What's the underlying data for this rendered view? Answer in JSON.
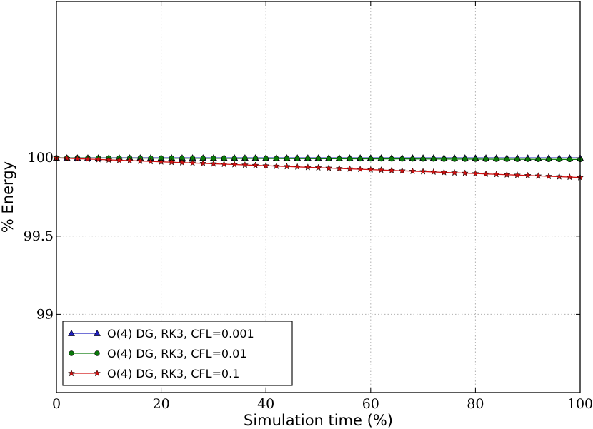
{
  "chart_data": {
    "type": "line",
    "xlabel": "Simulation time (%)",
    "ylabel": "% Energy",
    "xlim": [
      0,
      100
    ],
    "ylim": [
      98.5,
      101.0
    ],
    "xticks": [
      0,
      20,
      40,
      60,
      80,
      100
    ],
    "yticks": [
      99,
      99.5,
      100
    ],
    "ytick_labels": [
      "99",
      "99.5",
      "100"
    ],
    "xtick_labels": [
      "0",
      "20",
      "40",
      "60",
      "80",
      "100"
    ],
    "grid": true,
    "legend_position": "bottom-left",
    "series": [
      {
        "name": "O(4) DG, RK3, CFL=0.001",
        "color": "#1f1fbf",
        "marker": "triangle",
        "x_start": 0,
        "x_end": 100,
        "x_step": 2,
        "y_start": 100.0,
        "y_end": 100.0
      },
      {
        "name": "O(4) DG, RK3, CFL=0.01",
        "color": "#0a7a0a",
        "marker": "circle",
        "x_start": 0,
        "x_end": 100,
        "x_step": 2,
        "y_start": 100.0,
        "y_end": 99.99
      },
      {
        "name": "O(4) DG, RK3, CFL=0.1",
        "color": "#d01010",
        "marker": "star",
        "x_start": 0,
        "x_end": 100,
        "x_step": 2,
        "y_start": 100.0,
        "y_end": 99.875
      }
    ]
  }
}
